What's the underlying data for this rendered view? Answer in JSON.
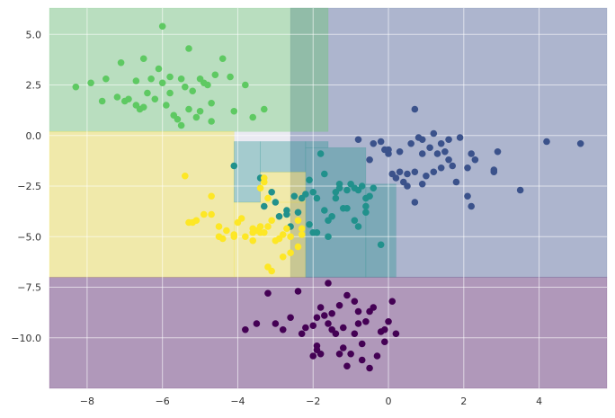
{
  "chart_data": {
    "type": "scatter",
    "title": "",
    "xlabel": "",
    "ylabel": "",
    "xlim": [
      -9,
      5.8
    ],
    "ylim": [
      -12.5,
      6.3
    ],
    "x_ticks": [
      -8,
      -6,
      -4,
      -2,
      0,
      2,
      4
    ],
    "x_tick_labels": [
      "−8",
      "−6",
      "−4",
      "−2",
      "0",
      "2",
      "4"
    ],
    "y_ticks": [
      5.0,
      2.5,
      0.0,
      -2.5,
      -5.0,
      -7.5,
      -10.0
    ],
    "y_tick_labels": [
      "5.0",
      "2.5",
      "0.0",
      "−2.5",
      "−5.0",
      "−7.5",
      "−10.0"
    ],
    "grid": true,
    "style": "seaborn",
    "colors": {
      "plot_background": "#eaeaf2",
      "grid": "#ffffff",
      "class_purple": "#440154",
      "class_blue": "#3b528b",
      "class_teal": "#21918c",
      "class_green": "#5ec962",
      "class_yellow": "#fde725"
    },
    "decision_regions": [
      {
        "color": "#440154",
        "opacity": 0.35,
        "bounds": {
          "x0": -9,
          "x1": 5.8,
          "y0": -12.5,
          "y1": -7.0
        }
      },
      {
        "color": "#3b528b",
        "opacity": 0.35,
        "bounds": {
          "x0": -2.6,
          "x1": 5.8,
          "y0": -7.0,
          "y1": 6.3
        }
      },
      {
        "color": "#5ec962",
        "opacity": 0.35,
        "bounds": {
          "x0": -9,
          "x1": -1.6,
          "y0": 0.2,
          "y1": 6.3
        }
      },
      {
        "color": "#fde725",
        "opacity": 0.35,
        "bounds": {
          "x0": -9,
          "x1": -4.1,
          "y0": -7.0,
          "y1": 0.2
        }
      },
      {
        "color": "#fde725",
        "opacity": 0.35,
        "bounds": {
          "x0": -4.1,
          "x1": -2.2,
          "y0": -7.0,
          "y1": -3.3
        }
      },
      {
        "color": "#fde725",
        "opacity": 0.35,
        "bounds": {
          "x0": -3.4,
          "x1": -2.2,
          "y0": -3.3,
          "y1": -1.8
        }
      },
      {
        "color": "#21918c",
        "opacity": 0.35,
        "bounds": {
          "x0": -4.1,
          "x1": -3.4,
          "y0": -3.3,
          "y1": -0.3
        }
      },
      {
        "color": "#21918c",
        "opacity": 0.35,
        "bounds": {
          "x0": -3.4,
          "x1": -2.2,
          "y0": -1.8,
          "y1": -0.3
        }
      },
      {
        "color": "#21918c",
        "opacity": 0.35,
        "bounds": {
          "x0": -2.2,
          "x1": -0.6,
          "y0": -7.0,
          "y1": -0.6
        }
      },
      {
        "color": "#21918c",
        "opacity": 0.35,
        "bounds": {
          "x0": -0.6,
          "x1": 0.2,
          "y0": -7.0,
          "y1": -2.4
        }
      },
      {
        "color": "#21918c",
        "opacity": 0.35,
        "bounds": {
          "x0": -2.2,
          "x1": -1.6,
          "y0": -0.6,
          "y1": -0.3
        }
      }
    ],
    "series": [
      {
        "color": "#440154",
        "points": [
          [
            -3.8,
            -9.6
          ],
          [
            -3.5,
            -9.3
          ],
          [
            -3.2,
            -7.8
          ],
          [
            -3.0,
            -9.3
          ],
          [
            -2.8,
            -9.6
          ],
          [
            -2.4,
            -7.7
          ],
          [
            -2.3,
            -9.8
          ],
          [
            -2.2,
            -9.5
          ],
          [
            -2.0,
            -10.9
          ],
          [
            -2.0,
            -9.4
          ],
          [
            -1.9,
            -10.4
          ],
          [
            -1.9,
            -10.6
          ],
          [
            -1.8,
            -10.8
          ],
          [
            -1.8,
            -8.5
          ],
          [
            -1.7,
            -8.9
          ],
          [
            -1.6,
            -7.3
          ],
          [
            -1.6,
            -9.3
          ],
          [
            -1.5,
            -8.8
          ],
          [
            -1.5,
            -9.6
          ],
          [
            -1.4,
            -9.8
          ],
          [
            -1.3,
            -8.4
          ],
          [
            -1.2,
            -9.5
          ],
          [
            -1.2,
            -10.5
          ],
          [
            -1.1,
            -7.9
          ],
          [
            -1.1,
            -11.4
          ],
          [
            -1.0,
            -10.8
          ],
          [
            -0.9,
            -9.8
          ],
          [
            -0.9,
            -8.2
          ],
          [
            -0.8,
            -9.3
          ],
          [
            -0.8,
            -8.7
          ],
          [
            -0.7,
            -10.3
          ],
          [
            -0.7,
            -11.1
          ],
          [
            -0.6,
            -9.2
          ],
          [
            -0.5,
            -11.5
          ],
          [
            -0.4,
            -8.5
          ],
          [
            -0.3,
            -10.9
          ],
          [
            -0.2,
            -9.7
          ],
          [
            -0.1,
            -9.6
          ],
          [
            -0.1,
            -10.2
          ],
          [
            0.0,
            -9.2
          ],
          [
            0.1,
            -8.2
          ],
          [
            0.2,
            -9.8
          ],
          [
            -2.6,
            -9.0
          ],
          [
            -1.9,
            -9.0
          ],
          [
            -0.5,
            -8.7
          ],
          [
            -1.3,
            -10.8
          ]
        ]
      },
      {
        "color": "#3b528b",
        "points": [
          [
            -0.8,
            -0.2
          ],
          [
            -0.5,
            -1.2
          ],
          [
            -0.4,
            -0.4
          ],
          [
            -0.2,
            -0.3
          ],
          [
            -0.1,
            -0.7
          ],
          [
            0.0,
            -0.9
          ],
          [
            0.0,
            -0.7
          ],
          [
            0.1,
            -1.9
          ],
          [
            0.2,
            -2.1
          ],
          [
            0.3,
            -1.8
          ],
          [
            0.3,
            -0.8
          ],
          [
            0.4,
            -2.3
          ],
          [
            0.5,
            -1.9
          ],
          [
            0.5,
            -2.5
          ],
          [
            0.6,
            -0.4
          ],
          [
            0.7,
            -1.8
          ],
          [
            0.7,
            -3.3
          ],
          [
            0.8,
            -0.1
          ],
          [
            0.9,
            -0.9
          ],
          [
            0.9,
            -2.4
          ],
          [
            1.0,
            -2.0
          ],
          [
            1.1,
            -0.6
          ],
          [
            1.2,
            -1.8
          ],
          [
            1.2,
            0.1
          ],
          [
            1.3,
            -0.9
          ],
          [
            1.4,
            -1.6
          ],
          [
            1.4,
            -0.4
          ],
          [
            1.5,
            -0.8
          ],
          [
            1.6,
            -1.2
          ],
          [
            1.6,
            -0.2
          ],
          [
            1.7,
            -1.5
          ],
          [
            1.8,
            -2.3
          ],
          [
            1.9,
            -0.1
          ],
          [
            2.1,
            -1.6
          ],
          [
            2.1,
            -3.0
          ],
          [
            2.2,
            -3.5
          ],
          [
            2.2,
            -0.9
          ],
          [
            2.3,
            -1.2
          ],
          [
            2.8,
            -1.7
          ],
          [
            2.8,
            -1.8
          ],
          [
            2.9,
            -0.8
          ],
          [
            3.5,
            -2.7
          ],
          [
            4.2,
            -0.3
          ],
          [
            5.1,
            -0.4
          ],
          [
            0.7,
            1.3
          ],
          [
            0.9,
            -0.2
          ]
        ]
      },
      {
        "color": "#21918c",
        "points": [
          [
            -4.1,
            -1.5
          ],
          [
            -3.4,
            -2.1
          ],
          [
            -3.3,
            -3.5
          ],
          [
            -3.1,
            -2.8
          ],
          [
            -3.0,
            -3.3
          ],
          [
            -2.9,
            -4.0
          ],
          [
            -2.7,
            -3.7
          ],
          [
            -2.6,
            -4.5
          ],
          [
            -2.5,
            -3.0
          ],
          [
            -2.3,
            -3.1
          ],
          [
            -2.2,
            -2.9
          ],
          [
            -2.1,
            -2.2
          ],
          [
            -2.1,
            -4.4
          ],
          [
            -2.0,
            -2.8
          ],
          [
            -1.9,
            -3.1
          ],
          [
            -1.9,
            -4.8
          ],
          [
            -1.8,
            -0.9
          ],
          [
            -1.7,
            -1.9
          ],
          [
            -1.7,
            -3.7
          ],
          [
            -1.6,
            -4.2
          ],
          [
            -1.6,
            -5.0
          ],
          [
            -1.5,
            -4.0
          ],
          [
            -1.4,
            -2.8
          ],
          [
            -1.4,
            -3.1
          ],
          [
            -1.3,
            -2.4
          ],
          [
            -1.3,
            -2.6
          ],
          [
            -1.2,
            -3.6
          ],
          [
            -1.1,
            -2.7
          ],
          [
            -1.1,
            -3.6
          ],
          [
            -1.0,
            -2.4
          ],
          [
            -0.9,
            -2.6
          ],
          [
            -0.9,
            -4.2
          ],
          [
            -0.8,
            -2.7
          ],
          [
            -0.8,
            -4.5
          ],
          [
            -0.7,
            -2.5
          ],
          [
            -0.6,
            -3.1
          ],
          [
            -0.6,
            -3.5
          ],
          [
            -0.5,
            -3.0
          ],
          [
            -0.4,
            -2.6
          ],
          [
            -0.2,
            -5.4
          ],
          [
            -0.6,
            -3.8
          ],
          [
            -2.4,
            -3.8
          ],
          [
            -2.7,
            -3.9
          ],
          [
            -2.0,
            -4.8
          ]
        ]
      },
      {
        "color": "#5ec962",
        "points": [
          [
            -8.3,
            2.4
          ],
          [
            -7.9,
            2.6
          ],
          [
            -7.6,
            1.7
          ],
          [
            -7.5,
            2.8
          ],
          [
            -7.2,
            1.9
          ],
          [
            -7.1,
            3.6
          ],
          [
            -7.0,
            1.7
          ],
          [
            -6.9,
            1.8
          ],
          [
            -6.7,
            2.7
          ],
          [
            -6.7,
            1.5
          ],
          [
            -6.6,
            1.3
          ],
          [
            -6.5,
            3.8
          ],
          [
            -6.4,
            2.1
          ],
          [
            -6.3,
            2.8
          ],
          [
            -6.2,
            1.8
          ],
          [
            -6.1,
            3.3
          ],
          [
            -6.0,
            2.6
          ],
          [
            -6.0,
            5.4
          ],
          [
            -5.9,
            1.5
          ],
          [
            -5.8,
            2.1
          ],
          [
            -5.8,
            2.9
          ],
          [
            -5.7,
            1.0
          ],
          [
            -5.6,
            0.8
          ],
          [
            -5.5,
            0.5
          ],
          [
            -5.5,
            2.8
          ],
          [
            -5.4,
            2.4
          ],
          [
            -5.3,
            1.3
          ],
          [
            -5.3,
            4.3
          ],
          [
            -5.2,
            2.2
          ],
          [
            -5.0,
            1.2
          ],
          [
            -5.0,
            2.8
          ],
          [
            -4.9,
            2.6
          ],
          [
            -4.8,
            2.5
          ],
          [
            -4.7,
            0.7
          ],
          [
            -4.7,
            1.6
          ],
          [
            -4.6,
            3.0
          ],
          [
            -4.4,
            3.8
          ],
          [
            -4.2,
            2.9
          ],
          [
            -4.1,
            1.2
          ],
          [
            -3.8,
            2.5
          ],
          [
            -3.6,
            0.9
          ],
          [
            -3.3,
            1.3
          ],
          [
            -5.1,
            0.9
          ],
          [
            -6.5,
            1.4
          ]
        ]
      },
      {
        "color": "#fde725",
        "points": [
          [
            -5.4,
            -2.0
          ],
          [
            -5.3,
            -4.3
          ],
          [
            -5.2,
            -4.3
          ],
          [
            -5.1,
            -4.2
          ],
          [
            -4.9,
            -3.9
          ],
          [
            -4.7,
            -3.9
          ],
          [
            -4.7,
            -3.0
          ],
          [
            -4.5,
            -4.5
          ],
          [
            -4.5,
            -5.0
          ],
          [
            -4.4,
            -5.1
          ],
          [
            -4.3,
            -4.7
          ],
          [
            -4.1,
            -4.9
          ],
          [
            -4.1,
            -5.0
          ],
          [
            -4.0,
            -4.3
          ],
          [
            -3.9,
            -4.1
          ],
          [
            -3.8,
            -5.0
          ],
          [
            -3.6,
            -5.2
          ],
          [
            -3.6,
            -4.6
          ],
          [
            -3.5,
            -4.7
          ],
          [
            -3.4,
            -4.8
          ],
          [
            -3.4,
            -4.5
          ],
          [
            -3.3,
            -4.8
          ],
          [
            -3.3,
            -2.3
          ],
          [
            -3.3,
            -2.1
          ],
          [
            -3.2,
            -3.1
          ],
          [
            -3.2,
            -4.5
          ],
          [
            -3.2,
            -6.5
          ],
          [
            -3.1,
            -6.7
          ],
          [
            -3.1,
            -4.2
          ],
          [
            -3.0,
            -5.2
          ],
          [
            -2.9,
            -5.1
          ],
          [
            -2.8,
            -4.9
          ],
          [
            -2.7,
            -4.6
          ],
          [
            -2.6,
            -5.0
          ],
          [
            -2.6,
            -5.8
          ],
          [
            -2.4,
            -5.5
          ],
          [
            -2.3,
            -4.6
          ],
          [
            -2.3,
            -4.9
          ],
          [
            -2.4,
            -4.2
          ],
          [
            -2.8,
            -6.0
          ],
          [
            -3.4,
            -2.6
          ],
          [
            -3.6,
            -4.8
          ]
        ]
      }
    ]
  }
}
